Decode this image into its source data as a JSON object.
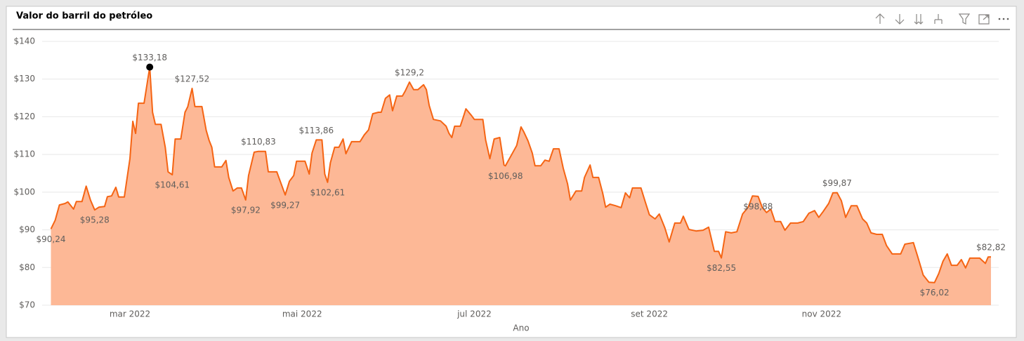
{
  "chart_data": {
    "type": "area",
    "title": "Valor do barril do petróleo",
    "x_label": "Ano",
    "color": "#f56413",
    "fill": "#fdb896",
    "marker_color": "#000000",
    "grid": true,
    "xlim": [
      1,
      334
    ],
    "xticks": [
      {
        "value": 29,
        "label": "mar 2022"
      },
      {
        "value": 90,
        "label": "mai 2022"
      },
      {
        "value": 151,
        "label": "jul 2022"
      },
      {
        "value": 213,
        "label": "set 2022"
      },
      {
        "value": 274,
        "label": "nov 2022"
      }
    ],
    "ylim": [
      70,
      140
    ],
    "yticks": [
      {
        "value": 70,
        "label": "$70"
      },
      {
        "value": 80,
        "label": "$80"
      },
      {
        "value": 90,
        "label": "$90"
      },
      {
        "value": 100,
        "label": "$100"
      },
      {
        "value": 110,
        "label": "$110"
      },
      {
        "value": 120,
        "label": "$120"
      },
      {
        "value": 130,
        "label": "$130"
      },
      {
        "value": 140,
        "label": "$140"
      }
    ],
    "x": [
      1,
      2.5,
      4,
      6,
      7,
      9,
      10,
      12,
      13.5,
      15,
      16.5,
      18,
      20,
      21,
      22.5,
      24,
      25,
      27,
      29,
      30,
      31,
      32,
      34,
      36,
      37,
      38,
      40,
      41.5,
      42.5,
      44,
      45,
      47,
      48.5,
      49.5,
      51,
      52,
      54.5,
      56,
      57,
      58,
      59,
      61.5,
      63,
      64,
      65.5,
      67,
      68.5,
      70,
      71,
      73,
      74.5,
      77,
      78,
      79.5,
      81,
      84,
      85.5,
      87,
      88,
      91,
      92.5,
      93.5,
      95,
      97,
      98,
      99,
      100,
      101.5,
      103,
      104.5,
      105.5,
      107.5,
      110.5,
      112,
      113.5,
      115,
      117,
      118,
      119.5,
      121,
      122,
      123.5,
      125.5,
      126.5,
      128,
      129.5,
      131,
      133,
      134,
      135,
      136.5,
      139,
      141,
      142,
      143,
      144,
      146,
      147,
      148,
      150,
      151,
      154,
      155,
      156.5,
      158,
      160,
      161.5,
      162,
      164,
      166,
      167.5,
      168.5,
      170,
      171.5,
      172.5,
      174.5,
      176,
      177.5,
      179,
      181,
      182.5,
      184,
      185,
      187,
      189,
      190,
      192,
      193,
      195,
      196.5,
      197.5,
      199,
      201,
      203,
      204.5,
      206,
      207,
      210,
      211.5,
      213,
      215,
      216.5,
      218.5,
      220,
      222,
      224,
      225,
      227,
      229.5,
      232,
      234,
      236,
      237.5,
      238.5,
      240,
      242,
      244,
      246,
      248,
      249.5,
      251.5,
      253,
      254.5,
      256,
      257.5,
      259.5,
      261,
      263,
      265.5,
      267.5,
      269.5,
      271.5,
      273,
      274.5,
      276.5,
      278,
      279.5,
      281,
      282.5,
      284.5,
      286.5,
      288.5,
      290,
      291.5,
      293.5,
      295.5,
      297,
      299,
      302,
      303.5,
      306.5,
      308,
      310,
      312,
      314,
      315.5,
      317,
      318.5,
      320,
      322,
      323.5,
      325,
      326.5,
      330,
      332,
      333,
      334
    ],
    "values": [
      90.24,
      92.5,
      96.6,
      97,
      97.4,
      95.5,
      97.5,
      97.5,
      101.6,
      97.9,
      95.28,
      96,
      96.2,
      98.8,
      99,
      101.3,
      98.7,
      98.7,
      108.9,
      118.8,
      115.6,
      123.6,
      123.6,
      133.18,
      121.2,
      118,
      118,
      111.9,
      105.4,
      104.61,
      114.1,
      114.1,
      121.2,
      122.7,
      127.52,
      122.7,
      122.7,
      116.4,
      113.8,
      111.9,
      106.7,
      106.7,
      108.4,
      103.9,
      100.3,
      101.1,
      101.1,
      97.92,
      104.4,
      110.6,
      110.83,
      110.83,
      105.4,
      105.4,
      105.4,
      99.27,
      102.9,
      104.4,
      108.2,
      108.2,
      104.8,
      110.4,
      113.86,
      113.86,
      104.8,
      102.61,
      107.8,
      111.9,
      111.9,
      114.1,
      110.2,
      113.4,
      113.4,
      115.2,
      116.5,
      120.8,
      121.2,
      121.2,
      124.9,
      125.8,
      121.6,
      125.5,
      125.5,
      126.8,
      129.2,
      127.2,
      127.2,
      128.5,
      127.2,
      123,
      119.3,
      118.9,
      117.5,
      115.6,
      114.5,
      117.5,
      117.5,
      119.7,
      122.1,
      120.3,
      119.3,
      119.3,
      113.8,
      108.9,
      114.1,
      114.5,
      107.2,
      106.98,
      109.7,
      112.4,
      117.3,
      116,
      113.6,
      110.4,
      107,
      107,
      108.5,
      108.2,
      111.5,
      111.5,
      106.3,
      102.2,
      97.9,
      100.3,
      100.3,
      103.9,
      107.2,
      103.9,
      103.9,
      99.6,
      96,
      96.8,
      96.4,
      95.9,
      99.8,
      98.5,
      101.1,
      101.1,
      97.5,
      94,
      92.9,
      94.2,
      90.5,
      86.8,
      91.8,
      91.8,
      93.6,
      90.1,
      89.7,
      89.9,
      90.7,
      84.3,
      84.3,
      82.55,
      89.5,
      89.2,
      89.5,
      94.2,
      96,
      99,
      98.88,
      95.9,
      94.6,
      95.5,
      92.2,
      92.2,
      89.9,
      91.8,
      91.8,
      92.2,
      94.4,
      95.1,
      93.3,
      94.8,
      97,
      99.8,
      99.87,
      97.7,
      93.3,
      96.4,
      96.4,
      92.9,
      91.8,
      89.2,
      88.8,
      88.8,
      85.8,
      83.6,
      83.6,
      86.2,
      86.6,
      83,
      78,
      76.1,
      76.02,
      78.4,
      81.7,
      83.6,
      80.6,
      80.6,
      82.1,
      79.9,
      82.5,
      82.5,
      81.1,
      82.8,
      82.82
    ],
    "value_labels": [
      "$90,24",
      null,
      null,
      null,
      null,
      null,
      null,
      null,
      null,
      null,
      "$95,28",
      null,
      null,
      null,
      null,
      null,
      null,
      null,
      null,
      null,
      null,
      null,
      null,
      "$133,18",
      null,
      null,
      null,
      null,
      null,
      "$104,61",
      null,
      null,
      null,
      null,
      "$127,52",
      null,
      null,
      null,
      null,
      null,
      null,
      null,
      null,
      null,
      null,
      null,
      null,
      "$97,92",
      null,
      null,
      "$110,83",
      null,
      null,
      null,
      null,
      "$99,27",
      null,
      null,
      null,
      null,
      null,
      null,
      "$113,86",
      null,
      null,
      "$102,61",
      null,
      null,
      null,
      null,
      null,
      null,
      null,
      null,
      null,
      null,
      null,
      null,
      null,
      null,
      null,
      null,
      null,
      null,
      "$129,2",
      null,
      null,
      null,
      null,
      null,
      null,
      null,
      null,
      null,
      null,
      null,
      null,
      null,
      null,
      null,
      null,
      null,
      null,
      null,
      null,
      null,
      null,
      "$106,98",
      null,
      null,
      null,
      null,
      null,
      null,
      null,
      null,
      null,
      null,
      null,
      null,
      null,
      null,
      null,
      null,
      null,
      null,
      null,
      null,
      null,
      null,
      null,
      null,
      null,
      null,
      null,
      null,
      null,
      null,
      null,
      null,
      null,
      null,
      null,
      null,
      null,
      null,
      null,
      null,
      null,
      null,
      null,
      null,
      null,
      "$82,55",
      null,
      null,
      null,
      null,
      null,
      null,
      "$98,88",
      null,
      null,
      null,
      null,
      null,
      null,
      null,
      null,
      null,
      null,
      null,
      null,
      null,
      null,
      null,
      "$99,87",
      null,
      null,
      null,
      null,
      null,
      null,
      null,
      null,
      null,
      null,
      null,
      null,
      null,
      null,
      null,
      null,
      null,
      "$76,02",
      null,
      null,
      null,
      null,
      null,
      null,
      null,
      null,
      null,
      null,
      null,
      "$82,82"
    ]
  }
}
